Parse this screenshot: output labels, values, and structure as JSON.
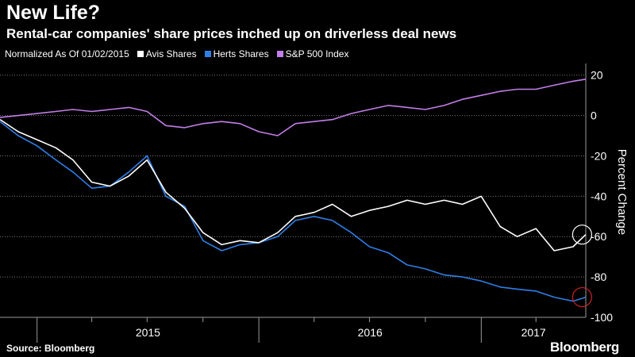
{
  "header": {
    "title": "New Life?",
    "subtitle": "Rental-car companies' share prices inched up on driverless deal news"
  },
  "legend": {
    "note": "Normalized As Of 01/02/2015",
    "items": [
      {
        "label": "Avis Shares",
        "color": "#ffffff"
      },
      {
        "label": "Herts Shares",
        "color": "#2f7fe6"
      },
      {
        "label": "S&P 500 Index",
        "color": "#c27ee8"
      }
    ]
  },
  "footer": {
    "source": "Source: Bloomberg",
    "brand": "Bloomberg"
  },
  "chart_data": {
    "type": "line",
    "title": "New Life?",
    "subtitle": "Rental-car companies' share prices inched up on driverless deal news",
    "ylabel": "Percent Change",
    "ylim": [
      -100,
      25
    ],
    "yticks": [
      20,
      0,
      -20,
      -40,
      -60,
      -80,
      -100
    ],
    "y_axis_side": "right",
    "xlim": [
      "2014-11-01",
      "2017-06-22"
    ],
    "x_tick_labels": [
      "2015",
      "2016",
      "2017"
    ],
    "grid": "dotted horizontal",
    "legend_position": "top-left",
    "x": [
      "2014-11-01",
      "2014-12-01",
      "2015-01-01",
      "2015-02-01",
      "2015-03-01",
      "2015-04-01",
      "2015-05-01",
      "2015-06-01",
      "2015-07-01",
      "2015-08-01",
      "2015-09-01",
      "2015-10-01",
      "2015-11-01",
      "2015-12-01",
      "2016-01-01",
      "2016-02-01",
      "2016-03-01",
      "2016-04-01",
      "2016-05-01",
      "2016-06-01",
      "2016-07-01",
      "2016-08-01",
      "2016-09-01",
      "2016-10-01",
      "2016-11-01",
      "2016-12-01",
      "2017-01-01",
      "2017-02-01",
      "2017-03-01",
      "2017-04-01",
      "2017-05-01",
      "2017-06-01",
      "2017-06-22"
    ],
    "series": [
      {
        "name": "Avis Shares",
        "color": "#ffffff",
        "values": [
          -2,
          -8,
          -12,
          -16,
          -22,
          -33,
          -35,
          -30,
          -22,
          -38,
          -46,
          -58,
          -64,
          -62,
          -63,
          -58,
          -50,
          -48,
          -44,
          -50,
          -47,
          -45,
          -42,
          -44,
          -42,
          -44,
          -40,
          -55,
          -60,
          -56,
          -67,
          -65,
          -59
        ]
      },
      {
        "name": "Herts Shares",
        "color": "#2f7fe6",
        "values": [
          -3,
          -10,
          -15,
          -22,
          -28,
          -36,
          -35,
          -28,
          -20,
          -40,
          -45,
          -62,
          -67,
          -64,
          -63,
          -60,
          -52,
          -50,
          -52,
          -58,
          -65,
          -68,
          -74,
          -76,
          -79,
          -80,
          -82,
          -85,
          -86,
          -87,
          -90,
          -92,
          -90
        ]
      },
      {
        "name": "S&P 500 Index",
        "color": "#c27ee8",
        "values": [
          -1,
          0,
          1,
          2,
          3,
          2,
          3,
          4,
          2,
          -5,
          -6,
          -4,
          -3,
          -4,
          -8,
          -10,
          -4,
          -3,
          -2,
          1,
          3,
          5,
          4,
          3,
          5,
          8,
          10,
          12,
          13,
          13,
          15,
          17,
          18
        ]
      }
    ],
    "annotations": [
      {
        "shape": "circle",
        "color": "#ffffff",
        "series": "Avis Shares",
        "x": "2017-06-16",
        "y": -59
      },
      {
        "shape": "circle",
        "color": "#cc2222",
        "series": "Herts Shares",
        "x": "2017-06-16",
        "y": -90
      }
    ]
  }
}
